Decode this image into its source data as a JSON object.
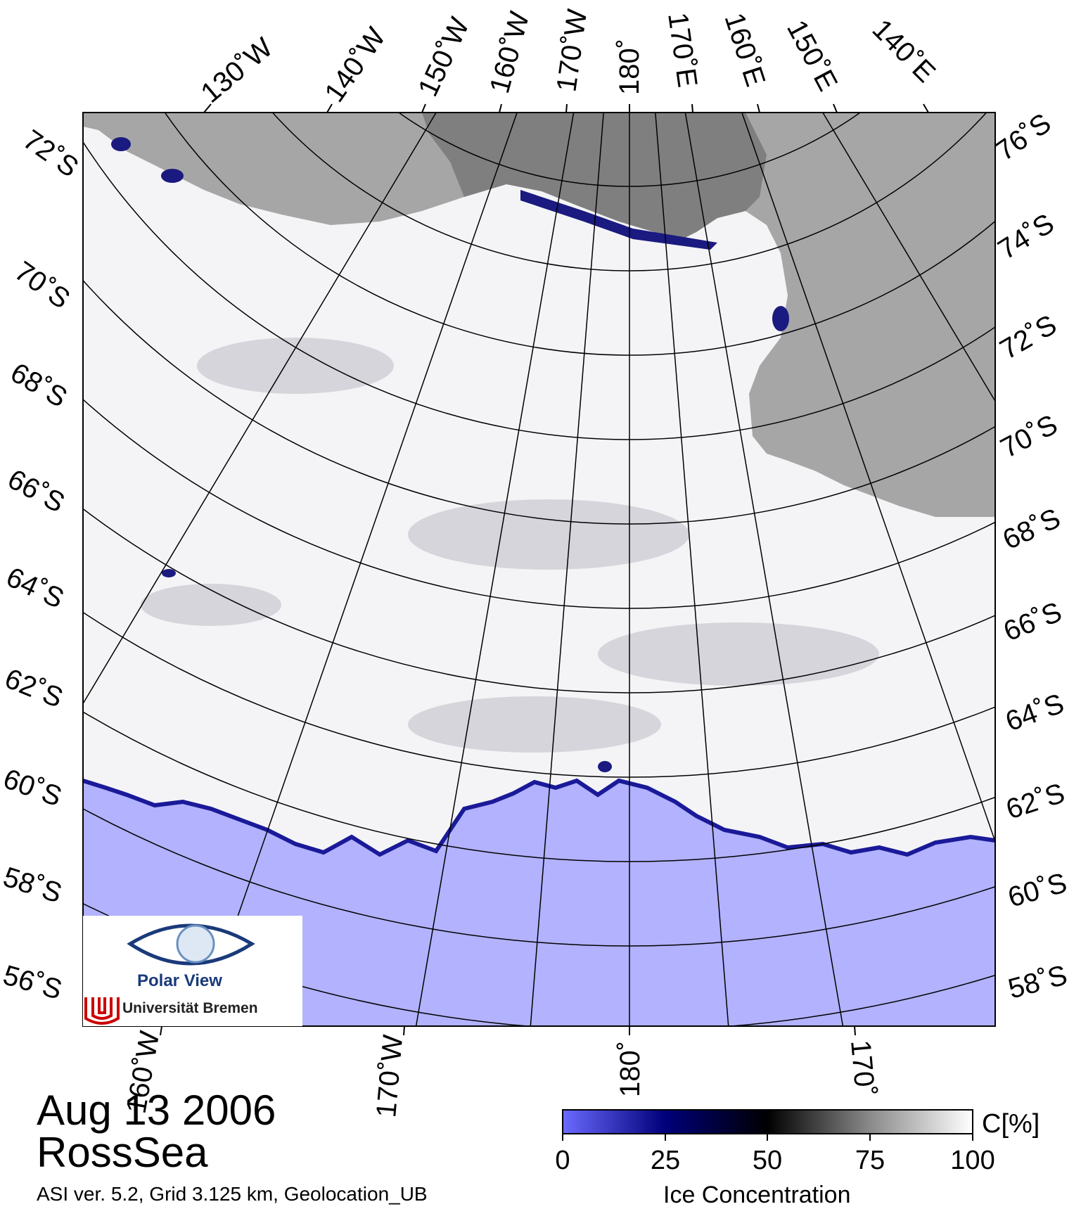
{
  "map": {
    "date": "Aug 13 2006",
    "region": "RossSea",
    "credits": "ASI ver. 5.2,  Grid 3.125 km, Geolocation_UB",
    "top_lon_labels": [
      "130˚W",
      "140˚W",
      "150˚W",
      "160˚W",
      "170˚W",
      "180˚",
      "170˚E",
      "160˚E",
      "150˚E",
      "140˚E"
    ],
    "left_lat_labels": [
      "72˚S",
      "70˚S",
      "68˚S",
      "66˚S",
      "64˚S",
      "62˚S",
      "60˚S",
      "58˚S",
      "56˚S"
    ],
    "right_lat_labels": [
      "76˚S",
      "74˚S",
      "72˚S",
      "70˚S",
      "68˚S",
      "66˚S",
      "64˚S",
      "62˚S",
      "60˚S",
      "58˚S"
    ],
    "bottom_lon_labels": [
      "160˚W",
      "170˚W",
      "180˚",
      "170˚"
    ],
    "colors": {
      "ocean": "#b2b2ff",
      "land": "#a6a6a6",
      "land_dark": "#7f7f7f",
      "ice": "#f4f4f6",
      "ice_edge": "#1a1a99",
      "grid": "#000000"
    }
  },
  "logo": {
    "title": "Polar View",
    "subtitle": "Universität Bremen"
  },
  "colorbar": {
    "label": "C[%]",
    "title": "Ice Concentration",
    "ticks": [
      "0",
      "25",
      "50",
      "75",
      "100"
    ],
    "stops": [
      "#6a6aff",
      "#00007a",
      "#000000",
      "#8a8a8a",
      "#ffffff"
    ]
  }
}
